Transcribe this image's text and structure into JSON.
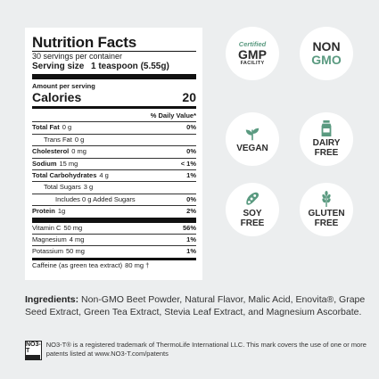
{
  "nutrition": {
    "title": "Nutrition Facts",
    "servings_per_container": "30 servings per container",
    "serving_size_label": "Serving size",
    "serving_size_value": "1 teaspoon (5.55g)",
    "amount_per_serving": "Amount per serving",
    "calories_label": "Calories",
    "calories_value": "20",
    "daily_value_header": "% Daily Value*",
    "rows": [
      {
        "name": "Total Fat",
        "amount": "0 g",
        "dv": "0%"
      },
      {
        "name": "Trans Fat",
        "amount": "0 g",
        "dv": ""
      },
      {
        "name": "Cholesterol",
        "amount": "0 mg",
        "dv": "0%"
      },
      {
        "name": "Sodium",
        "amount": "15 mg",
        "dv": "< 1%"
      },
      {
        "name": "Total Carbohydrates",
        "amount": "4 g",
        "dv": "1%"
      },
      {
        "name": "Total Sugars",
        "amount": "3 g",
        "dv": ""
      },
      {
        "name": "Includes 0 g Added Sugars",
        "amount": "",
        "dv": "0%"
      },
      {
        "name": "Protein",
        "amount": "1g",
        "dv": "2%"
      },
      {
        "name": "Vitamin C",
        "amount": "50 mg",
        "dv": "56%"
      },
      {
        "name": "Magnesium",
        "amount": "4 mg",
        "dv": "1%"
      },
      {
        "name": "Potassium",
        "amount": "50 mg",
        "dv": "1%"
      },
      {
        "name": "Caffeine (as green tea extract)",
        "amount": "80 mg †",
        "dv": ""
      }
    ]
  },
  "badges": {
    "gmp": {
      "certified": "Certified",
      "main": "GMP",
      "sub": "FACILITY"
    },
    "non_gmo": {
      "top": "NON",
      "bottom": "GMO"
    },
    "vegan": {
      "label": "VEGAN",
      "icon": "leaf-icon"
    },
    "dairy_free": {
      "line1": "DAIRY",
      "line2": "FREE",
      "icon": "milk-carton-icon"
    },
    "soy_free": {
      "line1": "SOY",
      "line2": "FREE",
      "icon": "soybean-icon"
    },
    "gluten_free": {
      "line1": "GLUTEN",
      "line2": "FREE",
      "icon": "wheat-icon"
    },
    "accent": "#5a9a80"
  },
  "ingredients": {
    "label": "Ingredients:",
    "text": "Non-GMO Beet Powder, Natural Flavor, Malic Acid, Enovita®, Grape Seed Extract, Green Tea Extract, Stevia Leaf Extract, and Magnesium Ascorbate."
  },
  "trademark": {
    "logo_text": "NO3-T",
    "text": "NO3-T® is a registered trademark of ThermoLife International LLC. This mark covers the use of one or more patents listed at www.NO3-T.com/patents"
  }
}
